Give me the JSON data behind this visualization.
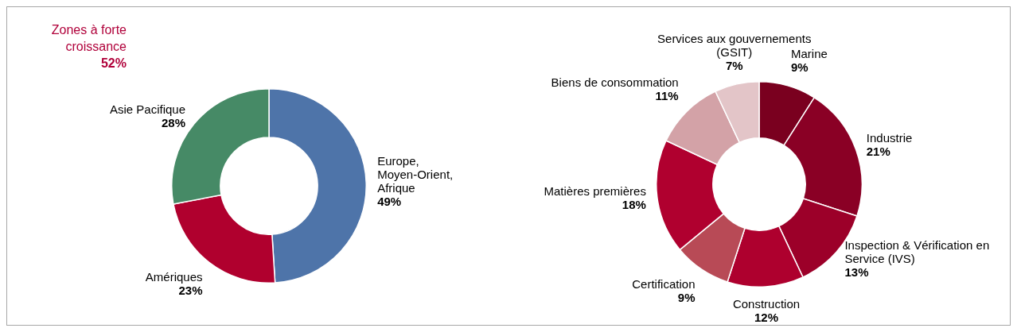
{
  "chart_data": [
    {
      "type": "donut",
      "categories": [
        "Europe, Moyen-Orient, Afrique",
        "Amériques",
        "Asie Pacifique"
      ],
      "values": [
        49,
        23,
        28
      ],
      "colors": [
        "#4e74a9",
        "#b0002e",
        "#468a66"
      ],
      "value_labels": [
        "49%",
        "23%",
        "28%"
      ],
      "annotations": [
        "Zones à forte croissance",
        "52%"
      ]
    },
    {
      "type": "donut",
      "categories": [
        "Marine",
        "Industrie",
        "Inspection & Vérification en Service (IVS)",
        "Construction",
        "Certification",
        "Matières premières",
        "Biens de consommation",
        "Services aux gouvernements (GSIT)"
      ],
      "values": [
        9,
        21,
        13,
        12,
        9,
        18,
        11,
        7
      ],
      "colors": [
        "#7a001f",
        "#8a0025",
        "#9c0029",
        "#ae002e",
        "#b84a56",
        "#b0002f",
        "#d3a2a7",
        "#e3c5c8"
      ],
      "value_labels": [
        "9%",
        "21%",
        "13%",
        "12%",
        "9%",
        "18%",
        "11%",
        "7%"
      ]
    }
  ]
}
